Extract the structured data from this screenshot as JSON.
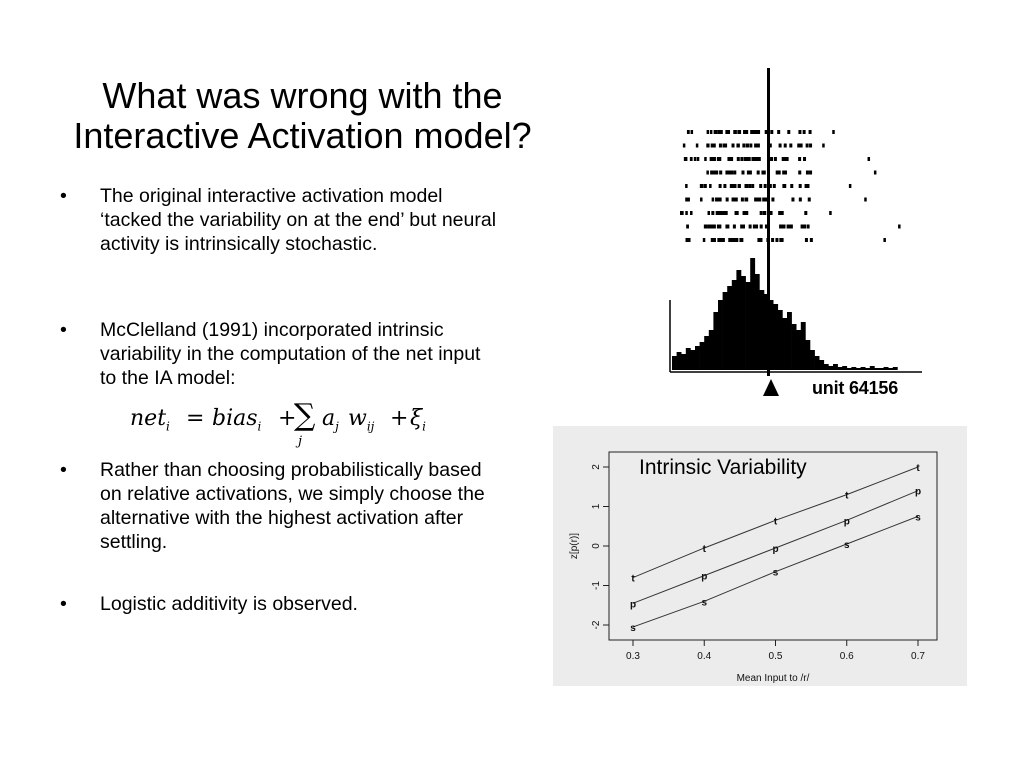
{
  "slide": {
    "title_lines": [
      "What was wrong with the",
      "Interactive Activation model?"
    ],
    "bullet_char": "•",
    "bullets": [
      "The original interactive activation model ‘tacked the variability on at the end’ but neural activity is intrinsically stochastic.",
      "McClelland (1991) incorporated intrinsic variability in the computation of the net input to the IA model:",
      "Rather than choosing probabilistically based on relative activations, we simply choose the alternative with the highest activation after settling.",
      "Logistic additivity is observed."
    ],
    "equation": {
      "lhs": "net",
      "lhs_sub": "i",
      "equals": "=",
      "bias": "bias",
      "bias_sub": "i",
      "plus1": "+",
      "sigma": "∑",
      "sum_index": "j",
      "a": "a",
      "a_sub": "j",
      "w": "w",
      "w_sub": "ij",
      "plus2": "+",
      "xi": "ξ",
      "xi_sub": "i"
    }
  },
  "raster_figure": {
    "label": "unit 64156"
  },
  "chart_data": {
    "type": "line",
    "title": "Intrinsic Variability",
    "xlabel": "Mean Input to /r/",
    "ylabel": "z[p(r)]",
    "x": [
      0.3,
      0.4,
      0.5,
      0.6,
      0.7
    ],
    "xlim": [
      0.3,
      0.7
    ],
    "ylim": [
      -2,
      2
    ],
    "xticks": [
      "0.3",
      "0.4",
      "0.5",
      "0.6",
      "0.7"
    ],
    "yticks": [
      "-2",
      "-1",
      "0",
      "1",
      "2"
    ],
    "series": [
      {
        "marker": "t",
        "values": [
          -0.8,
          -0.05,
          0.65,
          1.3,
          2.0
        ]
      },
      {
        "marker": "p",
        "values": [
          -1.45,
          -0.75,
          -0.05,
          0.65,
          1.4
        ]
      },
      {
        "marker": "s",
        "values": [
          -2.05,
          -1.4,
          -0.65,
          0.05,
          0.75
        ]
      }
    ]
  }
}
